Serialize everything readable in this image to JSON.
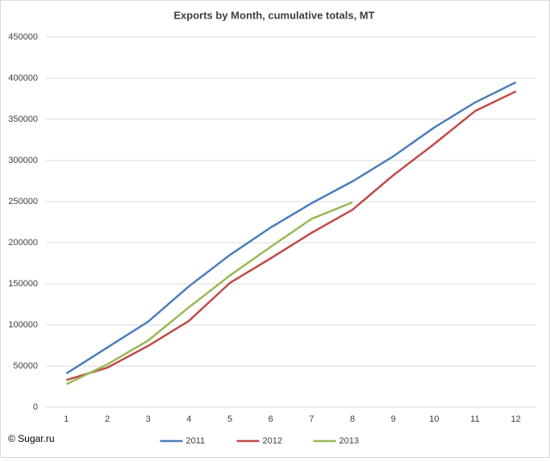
{
  "chart_data": {
    "type": "line",
    "title": "Exports by Month, cumulative totals, MT",
    "categories": [
      "1",
      "2",
      "3",
      "4",
      "5",
      "6",
      "7",
      "8",
      "9",
      "10",
      "11",
      "12"
    ],
    "series": [
      {
        "name": "2011",
        "color": "#4a7ebb",
        "values": [
          41000,
          72500,
          104000,
          147000,
          185000,
          218500,
          248000,
          274500,
          305000,
          340000,
          370500,
          395000
        ]
      },
      {
        "name": "2012",
        "color": "#be4b48",
        "values": [
          33000,
          48000,
          74500,
          105000,
          151000,
          181000,
          212000,
          240000,
          282000,
          320000,
          360000,
          384000
        ]
      },
      {
        "name": "2013",
        "color": "#98b954",
        "values": [
          28000,
          52000,
          81000,
          121500,
          160000,
          195000,
          229000,
          249000,
          null,
          null,
          null,
          null
        ]
      }
    ],
    "ylim": [
      0,
      450000
    ],
    "yticks": [
      0,
      50000,
      100000,
      150000,
      200000,
      250000,
      300000,
      350000,
      400000,
      450000
    ],
    "grid": true,
    "legend": "bottom",
    "annotation": "© Sugar.ru"
  }
}
